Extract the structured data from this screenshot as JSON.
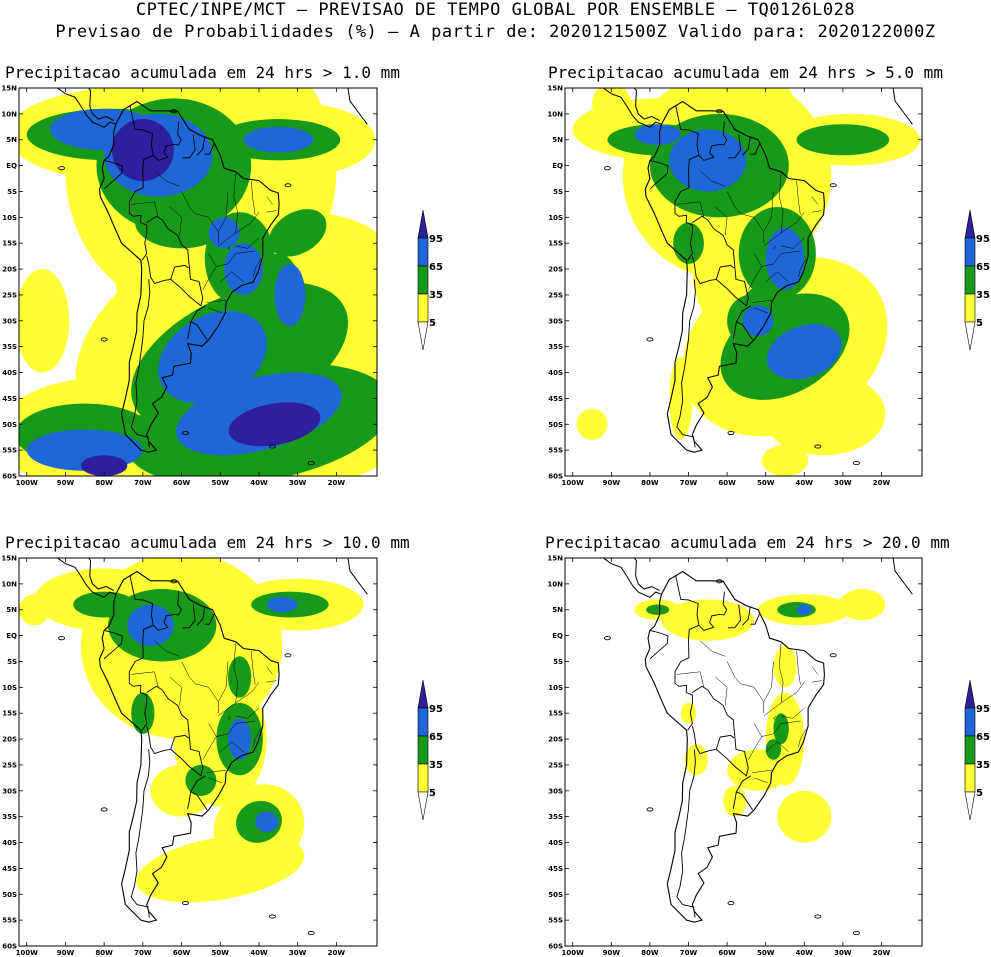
{
  "header": {
    "line1": "CPTEC/INPE/MCT — PREVISAO DE TEMPO GLOBAL POR ENSEMBLE — TQ0126L028",
    "line2": "Previsao de Probabilidades (%) —  A partir de: 2020121500Z  Valido para: 2020122000Z"
  },
  "colors": {
    "p5": "#ffff33",
    "p35": "#199919",
    "p65": "#1f66d6",
    "p95": "#2e1f9e",
    "coast": "#000000"
  },
  "colorbar": {
    "labels": [
      "95",
      "65",
      "35",
      "5"
    ]
  },
  "axes": {
    "lat_labels": [
      "15N",
      "10N",
      "5N",
      "EQ",
      "5S",
      "10S",
      "15S",
      "20S",
      "25S",
      "30S",
      "35S",
      "40S",
      "45S",
      "50S",
      "55S",
      "60S"
    ],
    "lon_labels": [
      "100W",
      "90W",
      "80W",
      "70W",
      "60W",
      "50W",
      "40W",
      "30W",
      "20W"
    ]
  },
  "panels": [
    {
      "title": "Precipitacao acumulada em 24 hrs > 1.0 mm",
      "threshold_mm": 1.0
    },
    {
      "title": "Precipitacao acumulada em 24 hrs > 5.0 mm",
      "threshold_mm": 5.0
    },
    {
      "title": "Precipitacao acumulada em 24 hrs > 10.0 mm",
      "threshold_mm": 10.0
    },
    {
      "title": "Precipitacao acumulada em 24 hrs > 20.0 mm",
      "threshold_mm": 20.0
    }
  ]
}
